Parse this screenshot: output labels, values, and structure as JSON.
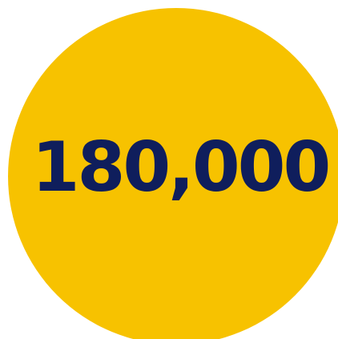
{
  "stat": {
    "value": "180,000"
  },
  "colors": {
    "circle_fill": "#F7C200",
    "text": "#0F1E5C",
    "background": "#ffffff"
  }
}
